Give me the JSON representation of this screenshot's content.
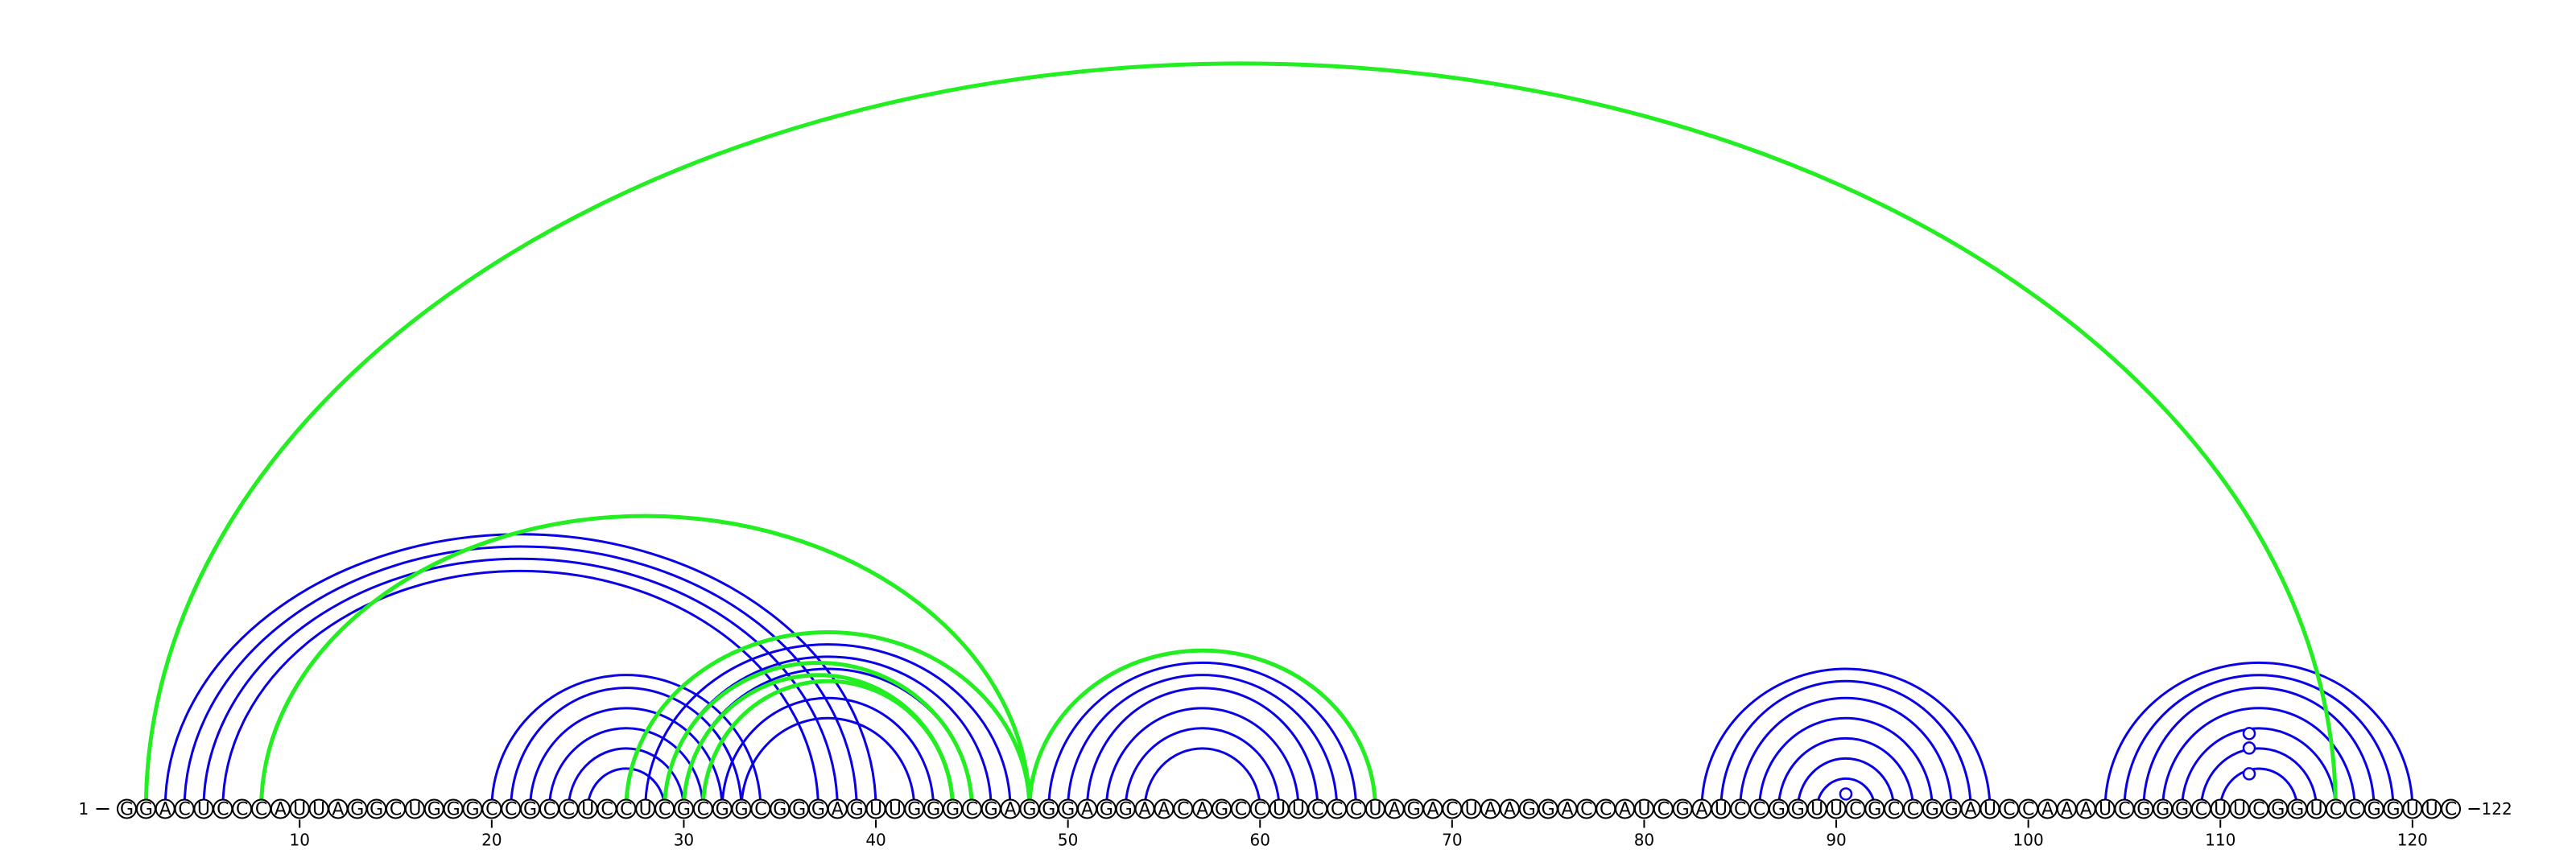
{
  "sequence": "GGACUCCCAUUAGGCUGGGCCGCCUCCUCGCGGCGGGAGUUGGGCGAGGGAGGAACAGCCUUCCCUAGACUAAGGACCAUCGAUCCGGUUCGCCGGAUCCAAAUCGGGCUUCGGUCCGGUUC",
  "start_label": "1",
  "end_label": "122",
  "tick_labels": [
    "10",
    "20",
    "30",
    "40",
    "50",
    "60",
    "70",
    "80",
    "90",
    "100",
    "110",
    "120"
  ],
  "colors": {
    "blue": "#0a00e6",
    "green": "#22ee22",
    "backbone": "#000000"
  },
  "helices": [
    {
      "color": "blue",
      "i": 3,
      "j": 40,
      "n": 4
    },
    {
      "color": "blue",
      "i": 20,
      "j": 34,
      "n": 6
    },
    {
      "color": "blue",
      "i": 28,
      "j": 47,
      "n": 6
    },
    {
      "color": "blue",
      "i": 49,
      "j": 65,
      "n": 6
    },
    {
      "color": "blue",
      "i": 83,
      "j": 98,
      "n": 7
    },
    {
      "color": "blue",
      "i": 104,
      "j": 120,
      "n": 7
    },
    {
      "color": "green",
      "i": 2,
      "j": 116,
      "n": 1
    },
    {
      "color": "green",
      "i": 8,
      "j": 48,
      "n": 1
    },
    {
      "color": "green",
      "i": 27,
      "j": 48,
      "n": 1
    },
    {
      "color": "green",
      "i": 29,
      "j": 45,
      "n": 2
    },
    {
      "color": "green",
      "i": 31,
      "j": 44,
      "n": 1
    },
    {
      "color": "green",
      "i": 48,
      "j": 66,
      "n": 1
    }
  ],
  "markers": [
    {
      "color": "blue",
      "i": 90,
      "j": 91
    },
    {
      "color": "blue",
      "i": 110,
      "j": 113
    },
    {
      "color": "blue",
      "i": 110,
      "j": 113
    },
    {
      "color": "blue",
      "i": 108,
      "j": 115
    }
  ]
}
